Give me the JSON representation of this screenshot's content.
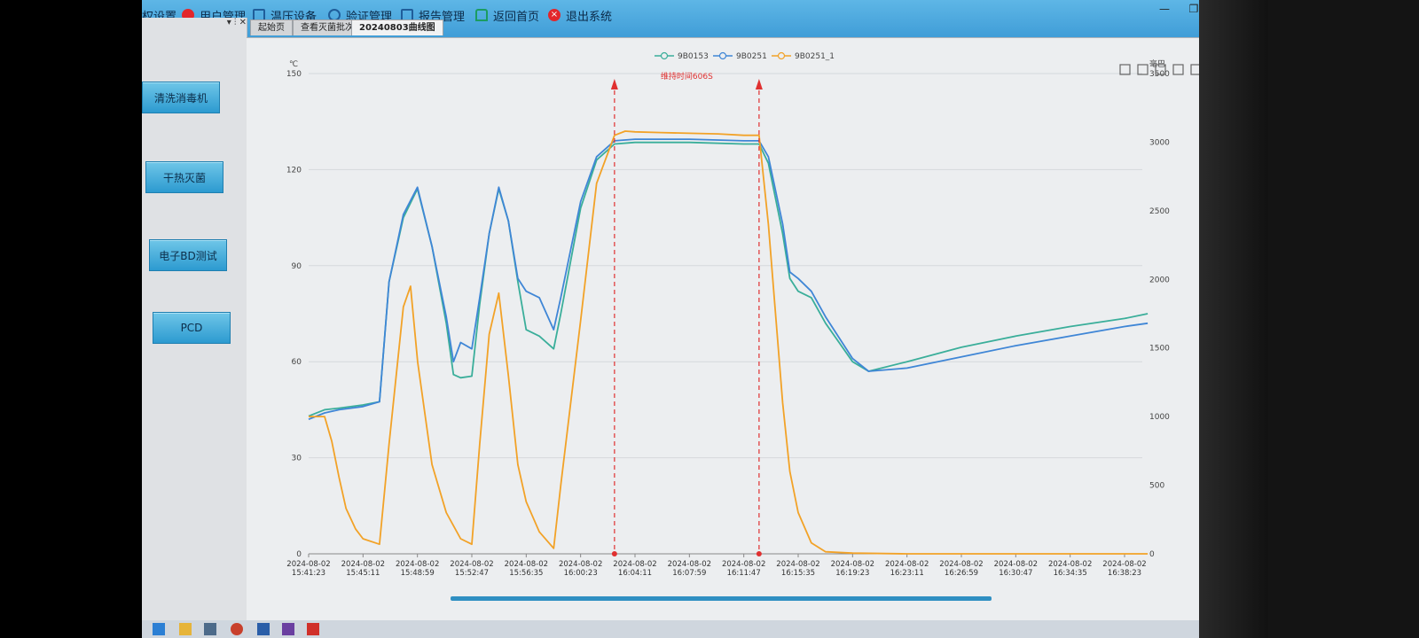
{
  "menu": {
    "item1": "权设置",
    "item2": "用户管理",
    "item3": "温压设备",
    "item4": "验证管理",
    "item5": "报告管理",
    "item6": "返回首页",
    "item7": "退出系统"
  },
  "window_controls": {
    "minimize": "—",
    "restore": "❐",
    "close": "✕"
  },
  "panel_controls": "▾ ⫶ ✕",
  "sidebar": {
    "buttons": [
      "清洗消毒机",
      "干热灭菌",
      "电子BD测试",
      "PCD"
    ]
  },
  "tabs": [
    "起始页",
    "查看灭菌批次",
    "20240803曲线图"
  ],
  "chart_toolbar_icons": [
    "crop-icon",
    "crop-alt-icon",
    "document-icon",
    "line-chart-icon",
    "bar-chart-icon",
    "refresh-icon",
    "download-icon"
  ],
  "colors": {
    "series_9B0153": "#3aae9a",
    "series_9B0251": "#3f86d6",
    "series_9B0251_1": "#f2a227",
    "marker": "#e03030",
    "titlebar": "#4aa8e0",
    "nav_button": "#3aa9d8"
  },
  "chart_data": {
    "type": "line",
    "annotation": "维持时间606S",
    "y_left_unit": "℃",
    "y_right_unit": "毫巴",
    "y_left_ticks": [
      "150",
      "120",
      "90",
      "60",
      "30",
      "0"
    ],
    "y_right_ticks": [
      "3500",
      "3000",
      "2500",
      "2000",
      "1500",
      "1000",
      "500",
      "0"
    ],
    "ylim_left": [
      0,
      150
    ],
    "ylim_right": [
      0,
      3500
    ],
    "grid": true,
    "legend_position": "top-center",
    "x_ticks": [
      [
        "2024-08-02",
        "15:41:23"
      ],
      [
        "2024-08-02",
        "15:45:11"
      ],
      [
        "2024-08-02",
        "15:48:59"
      ],
      [
        "2024-08-02",
        "15:52:47"
      ],
      [
        "2024-08-02",
        "15:56:35"
      ],
      [
        "2024-08-02",
        "16:00:23"
      ],
      [
        "2024-08-02",
        "16:04:11"
      ],
      [
        "2024-08-02",
        "16:07:59"
      ],
      [
        "2024-08-02",
        "16:11:47"
      ],
      [
        "2024-08-02",
        "16:15:35"
      ],
      [
        "2024-08-02",
        "16:19:23"
      ],
      [
        "2024-08-02",
        "16:23:11"
      ],
      [
        "2024-08-02",
        "16:26:59"
      ],
      [
        "2024-08-02",
        "16:30:47"
      ],
      [
        "2024-08-02",
        "16:34:35"
      ],
      [
        "2024-08-02",
        "16:38:23"
      ]
    ],
    "markers": [
      {
        "time": "16:02:45",
        "label": "start"
      },
      {
        "time": "16:12:51",
        "label": "end"
      }
    ],
    "series": [
      {
        "name": "9B0153",
        "axis": "left",
        "points": [
          [
            "15:41:23",
            43
          ],
          [
            "15:42:30",
            45
          ],
          [
            "15:43:30",
            45.5
          ],
          [
            "15:45:11",
            46.5
          ],
          [
            "15:46:20",
            47.5
          ],
          [
            "15:47:00",
            85
          ],
          [
            "15:48:00",
            105
          ],
          [
            "15:48:59",
            114
          ],
          [
            "15:50:00",
            96
          ],
          [
            "15:51:00",
            72
          ],
          [
            "15:51:30",
            56
          ],
          [
            "15:52:00",
            55
          ],
          [
            "15:52:47",
            55.5
          ],
          [
            "15:53:20",
            78
          ],
          [
            "15:54:00",
            100
          ],
          [
            "15:54:40",
            114
          ],
          [
            "15:55:20",
            104
          ],
          [
            "15:56:00",
            85
          ],
          [
            "15:56:35",
            70
          ],
          [
            "15:57:30",
            68
          ],
          [
            "15:58:30",
            64
          ],
          [
            "15:59:00",
            75
          ],
          [
            "16:00:23",
            108
          ],
          [
            "16:01:30",
            123
          ],
          [
            "16:02:45",
            128
          ],
          [
            "16:04:11",
            128.5
          ],
          [
            "16:07:59",
            128.5
          ],
          [
            "16:11:47",
            128
          ],
          [
            "16:12:51",
            128
          ],
          [
            "16:13:30",
            122
          ],
          [
            "16:14:30",
            100
          ],
          [
            "16:15:00",
            86
          ],
          [
            "16:15:35",
            82
          ],
          [
            "16:16:30",
            80
          ],
          [
            "16:17:30",
            72
          ],
          [
            "16:19:23",
            60
          ],
          [
            "16:20:30",
            57
          ],
          [
            "16:23:11",
            60
          ],
          [
            "16:26:59",
            64.5
          ],
          [
            "16:30:47",
            68
          ],
          [
            "16:34:35",
            71
          ],
          [
            "16:38:23",
            73.5
          ],
          [
            "16:40:00",
            75
          ]
        ]
      },
      {
        "name": "9B0251",
        "axis": "left",
        "points": [
          [
            "15:41:23",
            42
          ],
          [
            "15:42:30",
            44
          ],
          [
            "15:43:30",
            45
          ],
          [
            "15:45:11",
            46
          ],
          [
            "15:46:20",
            47.5
          ],
          [
            "15:47:00",
            85
          ],
          [
            "15:48:00",
            106
          ],
          [
            "15:48:59",
            114.5
          ],
          [
            "15:50:00",
            96
          ],
          [
            "15:51:00",
            74
          ],
          [
            "15:51:30",
            60
          ],
          [
            "15:52:00",
            66
          ],
          [
            "15:52:47",
            64
          ],
          [
            "15:53:20",
            80
          ],
          [
            "15:54:00",
            100
          ],
          [
            "15:54:40",
            114.5
          ],
          [
            "15:55:20",
            104
          ],
          [
            "15:56:00",
            86
          ],
          [
            "15:56:35",
            82
          ],
          [
            "15:57:30",
            80
          ],
          [
            "15:58:30",
            70
          ],
          [
            "15:59:00",
            80
          ],
          [
            "16:00:23",
            110
          ],
          [
            "16:01:30",
            124
          ],
          [
            "16:02:45",
            129
          ],
          [
            "16:04:11",
            129.5
          ],
          [
            "16:07:59",
            129.5
          ],
          [
            "16:11:47",
            129
          ],
          [
            "16:12:51",
            129
          ],
          [
            "16:13:30",
            124
          ],
          [
            "16:14:30",
            103
          ],
          [
            "16:15:00",
            88
          ],
          [
            "16:15:35",
            86
          ],
          [
            "16:16:30",
            82
          ],
          [
            "16:17:30",
            74
          ],
          [
            "16:19:23",
            61
          ],
          [
            "16:20:30",
            57
          ],
          [
            "16:23:11",
            58
          ],
          [
            "16:26:59",
            61.5
          ],
          [
            "16:30:47",
            65
          ],
          [
            "16:34:35",
            68
          ],
          [
            "16:38:23",
            71
          ],
          [
            "16:40:00",
            72
          ]
        ]
      },
      {
        "name": "9B0251_1",
        "axis": "right",
        "points": [
          [
            "15:41:23",
            1000
          ],
          [
            "15:42:30",
            1000
          ],
          [
            "15:43:00",
            820
          ],
          [
            "15:43:30",
            560
          ],
          [
            "15:44:00",
            330
          ],
          [
            "15:44:40",
            180
          ],
          [
            "15:45:11",
            110
          ],
          [
            "15:46:20",
            70
          ],
          [
            "15:47:00",
            800
          ],
          [
            "15:48:00",
            1800
          ],
          [
            "15:48:30",
            1950
          ],
          [
            "15:49:00",
            1400
          ],
          [
            "15:50:00",
            650
          ],
          [
            "15:51:00",
            300
          ],
          [
            "15:52:00",
            110
          ],
          [
            "15:52:47",
            70
          ],
          [
            "15:53:20",
            800
          ],
          [
            "15:54:00",
            1600
          ],
          [
            "15:54:40",
            1900
          ],
          [
            "15:55:20",
            1300
          ],
          [
            "15:56:00",
            650
          ],
          [
            "15:56:35",
            380
          ],
          [
            "15:57:30",
            160
          ],
          [
            "15:58:30",
            40
          ],
          [
            "15:59:00",
            500
          ],
          [
            "16:00:23",
            1700
          ],
          [
            "16:01:30",
            2700
          ],
          [
            "16:02:45",
            3050
          ],
          [
            "16:03:30",
            3080
          ],
          [
            "16:04:11",
            3075
          ],
          [
            "16:06:00",
            3070
          ],
          [
            "16:07:59",
            3065
          ],
          [
            "16:10:00",
            3060
          ],
          [
            "16:11:47",
            3050
          ],
          [
            "16:12:51",
            3050
          ],
          [
            "16:13:30",
            2400
          ],
          [
            "16:14:30",
            1100
          ],
          [
            "16:15:00",
            600
          ],
          [
            "16:15:35",
            300
          ],
          [
            "16:16:30",
            80
          ],
          [
            "16:17:30",
            15
          ],
          [
            "16:19:23",
            5
          ],
          [
            "16:23:11",
            0
          ],
          [
            "16:30:47",
            0
          ],
          [
            "16:38:23",
            0
          ],
          [
            "16:40:00",
            0
          ]
        ]
      }
    ]
  }
}
